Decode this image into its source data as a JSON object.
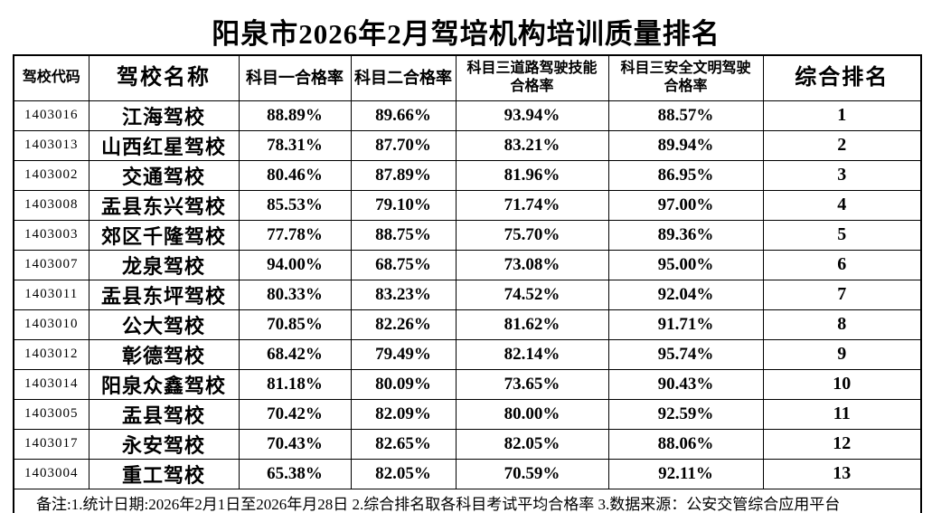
{
  "title": "阳泉市2026年2月驾培机构培训质量排名",
  "table": {
    "columns": [
      {
        "key": "code",
        "label": "驾校代码"
      },
      {
        "key": "name",
        "label": "驾校名称"
      },
      {
        "key": "s1",
        "label": "科目一合格率"
      },
      {
        "key": "s2",
        "label": "科目二合格率"
      },
      {
        "key": "s3road",
        "label": "科目三道路驾驶技能\n合格率"
      },
      {
        "key": "s3safe",
        "label": "科目三安全文明驾驶\n合格率"
      },
      {
        "key": "rank",
        "label": "综合排名"
      }
    ],
    "rows": [
      [
        "1403016",
        "江海驾校",
        "88.89%",
        "89.66%",
        "93.94%",
        "88.57%",
        "1"
      ],
      [
        "1403013",
        "山西红星驾校",
        "78.31%",
        "87.70%",
        "83.21%",
        "89.94%",
        "2"
      ],
      [
        "1403002",
        "交通驾校",
        "80.46%",
        "87.89%",
        "81.96%",
        "86.95%",
        "3"
      ],
      [
        "1403008",
        "盂县东兴驾校",
        "85.53%",
        "79.10%",
        "71.74%",
        "97.00%",
        "4"
      ],
      [
        "1403003",
        "郊区千隆驾校",
        "77.78%",
        "88.75%",
        "75.70%",
        "89.36%",
        "5"
      ],
      [
        "1403007",
        "龙泉驾校",
        "94.00%",
        "68.75%",
        "73.08%",
        "95.00%",
        "6"
      ],
      [
        "1403011",
        "盂县东坪驾校",
        "80.33%",
        "83.23%",
        "74.52%",
        "92.04%",
        "7"
      ],
      [
        "1403010",
        "公大驾校",
        "70.85%",
        "82.26%",
        "81.62%",
        "91.71%",
        "8"
      ],
      [
        "1403012",
        "彰德驾校",
        "68.42%",
        "79.49%",
        "82.14%",
        "95.74%",
        "9"
      ],
      [
        "1403014",
        "阳泉众鑫驾校",
        "81.18%",
        "80.09%",
        "73.65%",
        "90.43%",
        "10"
      ],
      [
        "1403005",
        "盂县驾校",
        "70.42%",
        "82.09%",
        "80.00%",
        "92.59%",
        "11"
      ],
      [
        "1403017",
        "永安驾校",
        "70.43%",
        "82.65%",
        "82.05%",
        "88.06%",
        "12"
      ],
      [
        "1403004",
        "重工驾校",
        "65.38%",
        "82.05%",
        "70.59%",
        "92.11%",
        "13"
      ]
    ],
    "footnote": "备注:1.统计日期:2026年2月1日至2026年月28日  2.综合排名取各科目考试平均合格率   3.数据来源：公安交管综合应用平台"
  }
}
